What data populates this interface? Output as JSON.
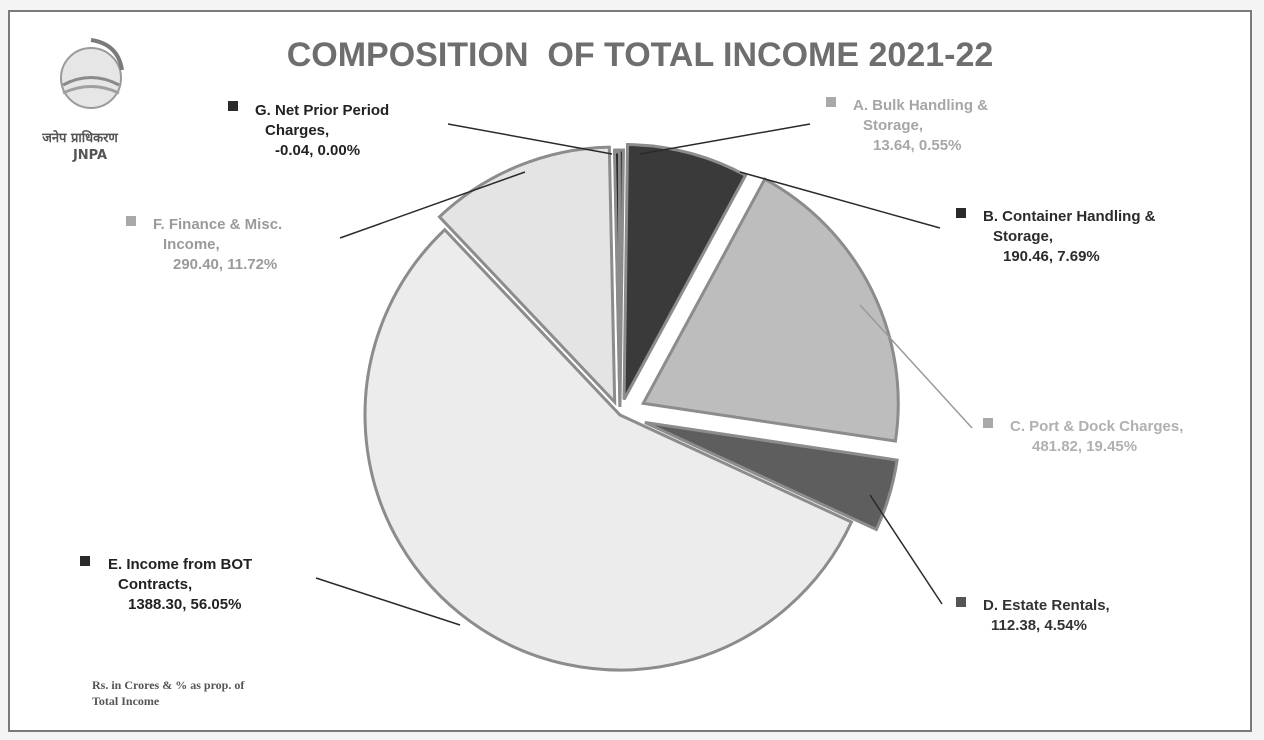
{
  "chart_data": {
    "type": "pie",
    "title": "COMPOSITION  OF TOTAL INCOME 2021-22",
    "note": [
      "Rs. in Crores & % as prop. of",
      "Total Income"
    ],
    "slices": [
      {
        "key": "A",
        "lines": [
          "A. Bulk Handling &",
          "Storage,",
          "13.64, 0.55%"
        ],
        "value": 13.64,
        "percent": 0.55,
        "color": "#2c2c2c",
        "text_color": "#a6a6a6"
      },
      {
        "key": "B",
        "lines": [
          "B. Container Handling &",
          "Storage,",
          "190.46, 7.69%"
        ],
        "value": 190.46,
        "percent": 7.69,
        "color": "#3a3a3a",
        "text_color": "#2b2b2b"
      },
      {
        "key": "C",
        "lines": [
          "C. Port & Dock Charges,",
          "481.82, 19.45%"
        ],
        "value": 481.82,
        "percent": 19.45,
        "color": "#bdbdbd",
        "text_color": "#b0b0b0"
      },
      {
        "key": "D",
        "lines": [
          "D. Estate Rentals,",
          "112.38, 4.54%"
        ],
        "value": 112.38,
        "percent": 4.54,
        "color": "#5e5e5e",
        "text_color": "#333333"
      },
      {
        "key": "E",
        "lines": [
          "E. Income from BOT",
          "Contracts,",
          "1388.30, 56.05%"
        ],
        "value": 1388.3,
        "percent": 56.05,
        "color": "#ececec",
        "text_color": "#222222"
      },
      {
        "key": "F",
        "lines": [
          "F. Finance &  Misc.",
          "Income,",
          "290.40, 11.72%"
        ],
        "value": 290.4,
        "percent": 11.72,
        "color": "#e4e4e4",
        "text_color": "#9a9a9a"
      },
      {
        "key": "G",
        "lines": [
          "G. Net Prior Period",
          "Charges,",
          "-0.04, 0.00%"
        ],
        "value": -0.04,
        "percent": 0.0,
        "color": "#1e1e1e",
        "text_color": "#222222"
      }
    ]
  },
  "logo": {
    "script": "जनेप प्राधिकरण",
    "name": "JNPA"
  }
}
